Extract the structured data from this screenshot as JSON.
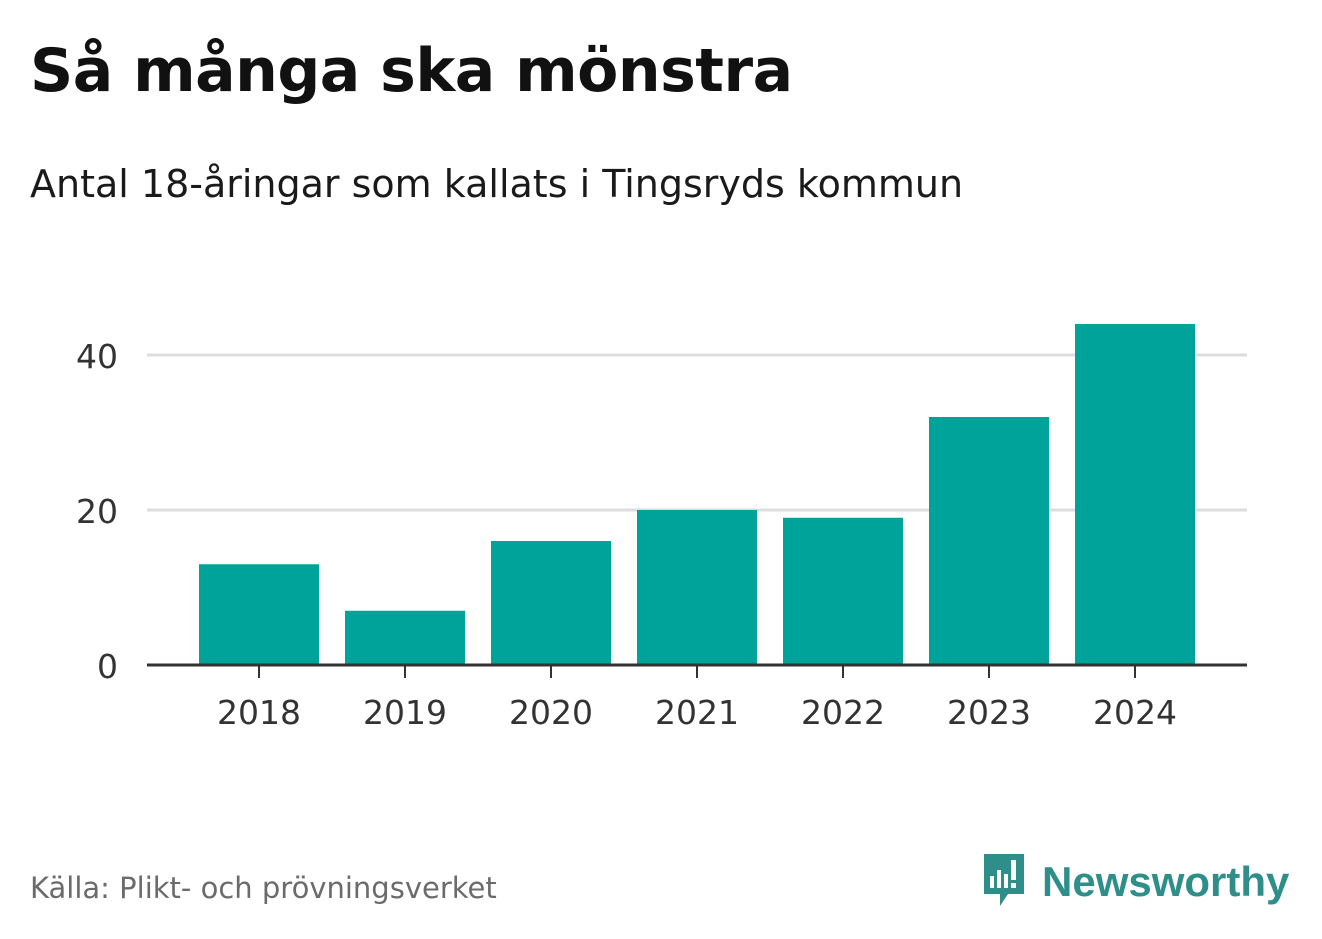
{
  "title": "Så många ska mönstra",
  "subtitle": "Antal 18-åringar som kallats i Tingsryds kommun",
  "source": "Källa: Plikt- och prövningsverket",
  "brand": {
    "name": "Newsworthy",
    "icon": "newsworthy-logo-icon",
    "color": "#2e8f8a"
  },
  "colors": {
    "bar": "#00a39a",
    "grid": "#dddddd",
    "axis": "#333333"
  },
  "chart_data": {
    "type": "bar",
    "title": "Så många ska mönstra",
    "subtitle": "Antal 18-åringar som kallats i Tingsryds kommun",
    "xlabel": "",
    "ylabel": "",
    "categories": [
      "2018",
      "2019",
      "2020",
      "2021",
      "2022",
      "2023",
      "2024"
    ],
    "values": [
      13,
      7,
      16,
      20,
      19,
      32,
      44
    ],
    "yticks": [
      0,
      20,
      40
    ],
    "ylim": [
      0,
      44
    ],
    "grid": true,
    "legend": "none"
  }
}
